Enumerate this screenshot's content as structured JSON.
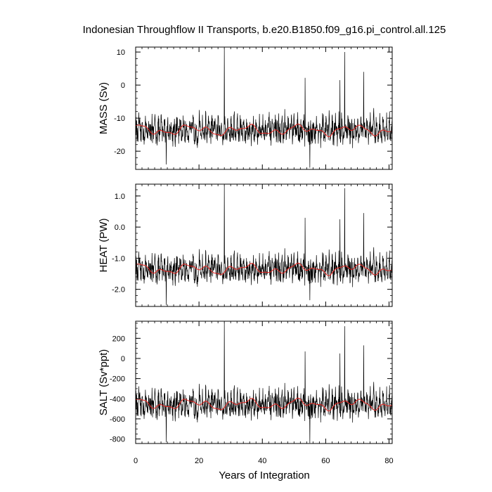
{
  "chart_data": {
    "type": "line",
    "title": "Indonesian Throughflow II Transports, b.e20.B1850.f09_g16.pi_control.all.125",
    "xlabel": "Years of Integration",
    "xlim": [
      0,
      81
    ],
    "xticks": [
      0,
      20,
      40,
      60,
      80
    ],
    "x_tick_labels": [
      "0",
      "20",
      "40",
      "60",
      "80"
    ],
    "grid": false,
    "colors": {
      "monthly": "#000000",
      "smoothed": "#e8231f"
    },
    "panels": [
      {
        "id": "mass",
        "ylabel": "MASS (Sv)",
        "ylim": [
          -25.5,
          11.5
        ],
        "yticks": [
          10,
          0,
          -10,
          -20
        ],
        "y_tick_labels": [
          "10",
          "0",
          "-10",
          "-20"
        ],
        "minor_step": 2,
        "mean": -13.6,
        "amplitude": 3.6,
        "smooth_level": -13.6,
        "spikes": [
          {
            "x": 28.0,
            "y": 11.2
          },
          {
            "x": 66.0,
            "y": 10.0
          },
          {
            "x": 72.0,
            "y": 4.0
          },
          {
            "x": 53.5,
            "y": 2.2
          },
          {
            "x": 64.5,
            "y": 1.5
          },
          {
            "x": 9.7,
            "y": -24.0
          },
          {
            "x": 55.0,
            "y": -25.0
          }
        ]
      },
      {
        "id": "heat",
        "ylabel": "HEAT (PW)",
        "ylim": [
          -2.55,
          1.38
        ],
        "yticks": [
          1.0,
          0.0,
          -1.0,
          -2.0
        ],
        "y_tick_labels": [
          "1.0",
          "0.0",
          "-1.0",
          "-2.0"
        ],
        "minor_step": 0.2,
        "mean": -1.35,
        "amplitude": 0.38,
        "smooth_level": -1.35,
        "spikes": [
          {
            "x": 28.0,
            "y": 1.35
          },
          {
            "x": 66.0,
            "y": 1.25
          },
          {
            "x": 72.0,
            "y": 0.45
          },
          {
            "x": 53.5,
            "y": 0.3
          },
          {
            "x": 64.5,
            "y": 0.25
          },
          {
            "x": 9.7,
            "y": -2.5
          },
          {
            "x": 55.0,
            "y": -2.35
          }
        ]
      },
      {
        "id": "salt",
        "ylabel": "SALT (Sv*ppt)",
        "ylim": [
          -845,
          370
        ],
        "yticks": [
          200,
          0,
          -200,
          -400,
          -600,
          -800
        ],
        "y_tick_labels": [
          "200",
          "0",
          "-200",
          "-400",
          "-600",
          "-800"
        ],
        "minor_step": 50,
        "mean": -455,
        "amplitude": 120,
        "smooth_level": -455,
        "spikes": [
          {
            "x": 28.0,
            "y": 360
          },
          {
            "x": 66.0,
            "y": 320
          },
          {
            "x": 72.0,
            "y": 130
          },
          {
            "x": 53.5,
            "y": 70
          },
          {
            "x": 64.5,
            "y": 50
          },
          {
            "x": 9.7,
            "y": -830
          },
          {
            "x": 55.0,
            "y": -840
          }
        ]
      }
    ]
  }
}
